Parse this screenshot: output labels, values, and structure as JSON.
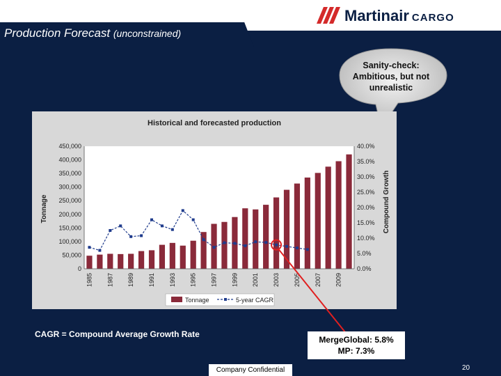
{
  "slide": {
    "title": "Production Forecast",
    "title_sub": "(unconstrained)",
    "logo_name": "Martinair",
    "logo_cargo": "CARGO",
    "bubble_lines": [
      "Sanity-check:",
      "Ambitious, but not",
      "unrealistic"
    ],
    "cagr_note": "CAGR = Compound Average Growth Rate",
    "merge_lines": [
      "MergeGlobal: 5.8%",
      "MP: 7.3%"
    ],
    "footer": "Company Confidential",
    "page_number": "20",
    "colors": {
      "background": "#0b1f43",
      "bar": "#8a2a3a",
      "line": "#1f3b8c",
      "highlight": "#e02020",
      "logo_red": "#d42a2a"
    }
  },
  "chart_data": {
    "type": "bar",
    "title": "Historical and forecasted production",
    "ylabel": "Tonnage",
    "y2label": "Compound Growth",
    "ylim": [
      0,
      450000
    ],
    "y2lim": [
      0,
      0.4
    ],
    "yticks": [
      "0",
      "50,000",
      "100,000",
      "150,000",
      "200,000",
      "250,000",
      "300,000",
      "350,000",
      "400,000",
      "450,000"
    ],
    "y2ticks": [
      "0.0%",
      "5.0%",
      "10.0%",
      "15.0%",
      "20.0%",
      "25.0%",
      "30.0%",
      "35.0%",
      "40.0%"
    ],
    "categories": [
      "1985",
      "1986",
      "1987",
      "1988",
      "1989",
      "1990",
      "1991",
      "1992",
      "1993",
      "1994",
      "1995",
      "1996",
      "1997",
      "1998",
      "1999",
      "2000",
      "2001",
      "2002",
      "2003",
      "2004",
      "2005",
      "2006",
      "2007",
      "2008",
      "2009",
      "2010"
    ],
    "xtick_labels": [
      "1985",
      "1987",
      "1989",
      "1991",
      "1993",
      "1995",
      "1997",
      "1999",
      "2001",
      "2003",
      "2005",
      "2007",
      "2009"
    ],
    "series": [
      {
        "name": "Tonnage",
        "values": [
          48000,
          52000,
          55000,
          54000,
          55000,
          65000,
          68000,
          88000,
          95000,
          85000,
          103000,
          135000,
          165000,
          172000,
          190000,
          222000,
          218000,
          235000,
          262000,
          290000,
          313000,
          335000,
          352000,
          375000,
          395000,
          420000
        ]
      },
      {
        "name": "5-year CAGR",
        "values": [
          0.07,
          0.06,
          0.125,
          0.14,
          0.105,
          0.108,
          0.16,
          0.14,
          0.128,
          0.19,
          0.16,
          0.095,
          0.07,
          0.085,
          0.083,
          0.075,
          0.088,
          0.086,
          0.078,
          0.073,
          0.068,
          0.063,
          null,
          null,
          null,
          null
        ]
      }
    ],
    "legend_position": "bottom",
    "grid": false
  }
}
